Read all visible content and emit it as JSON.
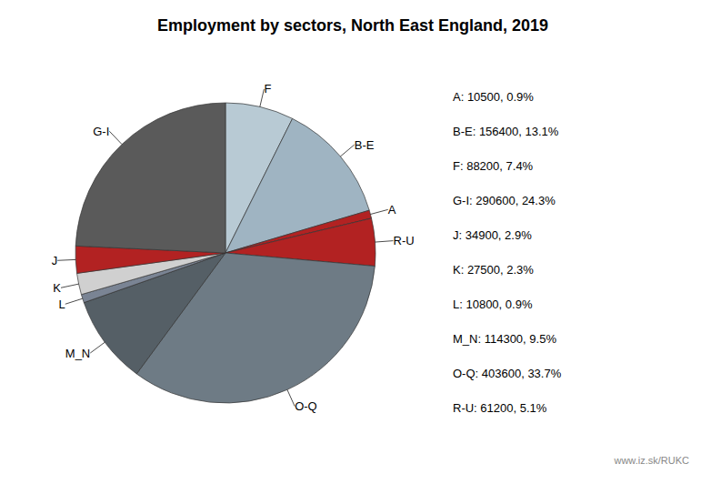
{
  "chart_data": {
    "type": "pie",
    "title": "Employment by sectors, North East England, 2019",
    "categories": [
      "F",
      "B-E",
      "A",
      "R-U",
      "O-Q",
      "M_N",
      "L",
      "K",
      "J",
      "G-I"
    ],
    "values": [
      88200,
      156400,
      10500,
      61200,
      403600,
      114300,
      10800,
      27500,
      34900,
      290600
    ],
    "colors": [
      "#b8cad4",
      "#9fb4c2",
      "#b22222",
      "#b22222",
      "#6e7b85",
      "#555f66",
      "#7a8494",
      "#d0d0d0",
      "#b22222",
      "#5a5a5a"
    ],
    "annotations": [
      "A: 10500, 0.9%",
      "B-E: 156400, 13.1%",
      "F: 88200, 7.4%",
      "G-I: 290600, 24.3%",
      "J: 34900, 2.9%",
      "K: 27500, 2.3%",
      "L: 10800, 0.9%",
      "M_N: 114300, 9.5%",
      "O-Q: 403600, 33.7%",
      "R-U: 61200, 5.1%",
      "www.iz.sk/RUKC"
    ]
  }
}
